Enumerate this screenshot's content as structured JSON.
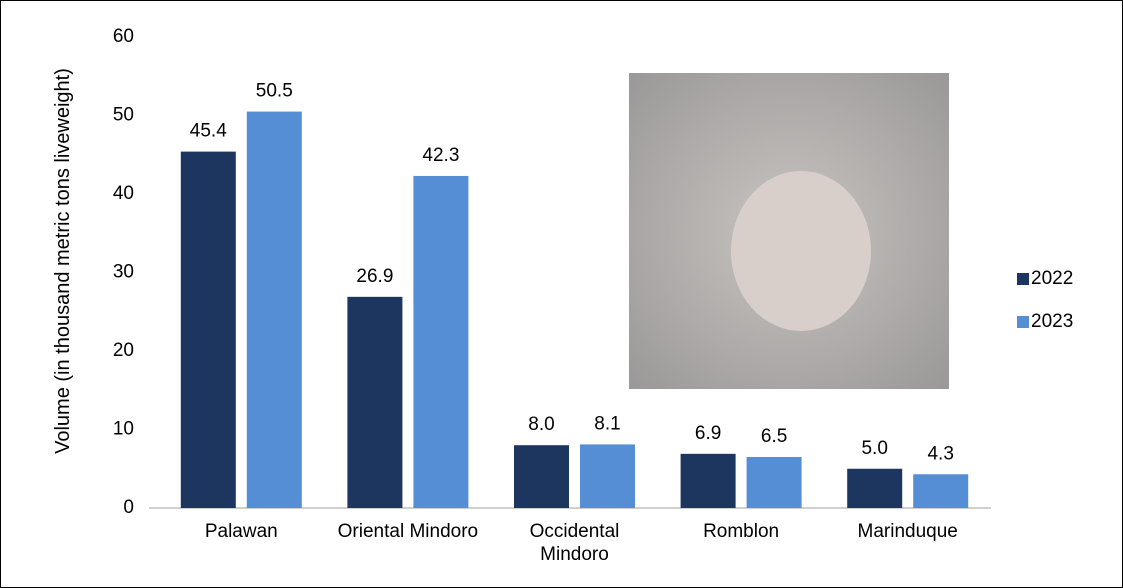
{
  "chart_data": {
    "type": "bar",
    "y_label": "Volume (in thousand metric tons liveweight)",
    "categories": [
      "Palawan",
      "Oriental Mindoro",
      "Occidental Mindoro",
      "Romblon",
      "Marinduque"
    ],
    "series": [
      {
        "name": "2022",
        "color": "#1c3660",
        "values": [
          45.4,
          26.9,
          8,
          6.9,
          5
        ],
        "value_labels": [
          "45.4",
          "26.9",
          "8.0",
          "6.9",
          "5.0"
        ]
      },
      {
        "name": "2023",
        "color": "#558ed5",
        "values": [
          50.5,
          42.3,
          8.1,
          6.5,
          4.3
        ],
        "value_labels": [
          "50.5",
          "42.3",
          "8.1",
          "6.5",
          "4.3"
        ]
      }
    ],
    "ylim": [
      0,
      60
    ],
    "yticks": [
      0,
      10,
      20,
      30,
      40,
      50,
      60
    ],
    "grid": false,
    "legend": "right"
  }
}
